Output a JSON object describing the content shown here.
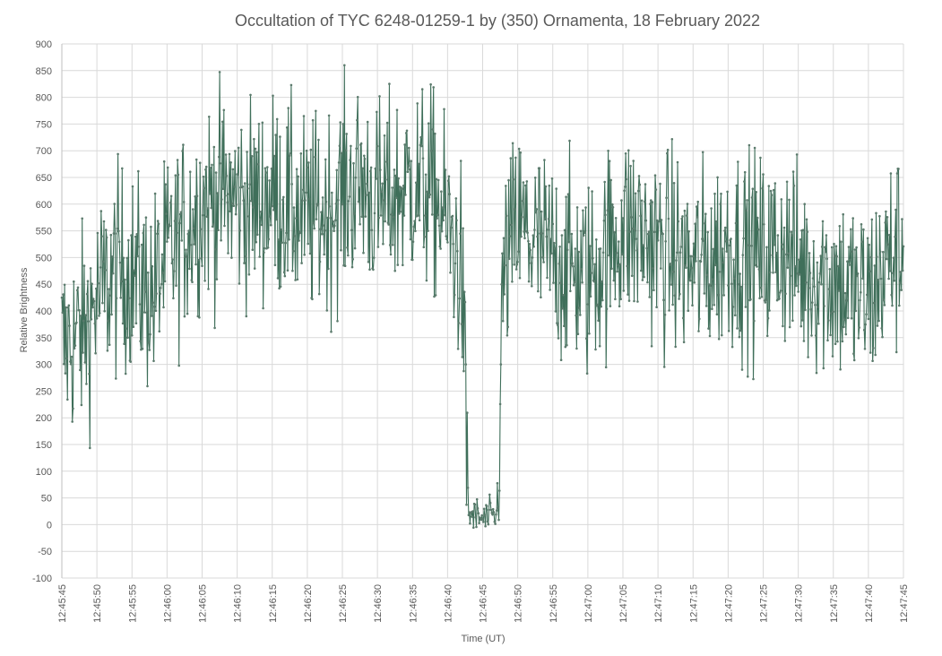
{
  "chart_data": {
    "type": "line",
    "title": "Occultation of TYC 6248-01259-1 by (350) Ornamenta, 18 February 2022",
    "xlabel": "Time (UT)",
    "ylabel": "Relative Brightness",
    "ylim": [
      -100,
      900
    ],
    "y_ticks": [
      "900",
      "850",
      "800",
      "750",
      "700",
      "650",
      "600",
      "550",
      "500",
      "450",
      "400",
      "350",
      "300",
      "250",
      "200",
      "150",
      "100",
      "50",
      "0",
      "-50",
      "-100"
    ],
    "x_range_seconds": [
      "12:45:45",
      "12:47:45"
    ],
    "x_ticks": [
      "12:45:45",
      "12:45:50",
      "12:45:55",
      "12:46:00",
      "12:46:05",
      "12:46:10",
      "12:46:15",
      "12:46:20",
      "12:46:25",
      "12:46:30",
      "12:46:35",
      "12:46:40",
      "12:46:45",
      "12:46:50",
      "12:46:55",
      "12:47:00",
      "12:47:05",
      "12:47:10",
      "12:47:15",
      "12:47:20",
      "12:47:25",
      "12:47:30",
      "12:47:35",
      "12:47:40",
      "12:47:45"
    ],
    "grid": true,
    "legend": "none",
    "series_color": "#3f6f5a",
    "series": [
      {
        "x": [
          "12:45:45",
          "12:45:48",
          "12:45:50",
          "12:45:53",
          "12:45:55",
          "12:45:58",
          "12:46:00",
          "12:46:03",
          "12:46:05",
          "12:46:08",
          "12:46:10",
          "12:46:13",
          "12:46:15",
          "12:46:18",
          "12:46:20",
          "12:46:23",
          "12:46:25",
          "12:46:28",
          "12:46:30",
          "12:46:33",
          "12:46:35",
          "12:46:38",
          "12:46:40",
          "12:46:42",
          "12:46:43",
          "12:46:45",
          "12:46:47",
          "12:46:48",
          "12:46:50",
          "12:46:53",
          "12:46:55",
          "12:46:58",
          "12:47:00",
          "12:47:03",
          "12:47:05",
          "12:47:08",
          "12:47:10",
          "12:47:13",
          "12:47:15",
          "12:47:18",
          "12:47:20",
          "12:47:23",
          "12:47:25",
          "12:47:28",
          "12:47:30",
          "12:47:33",
          "12:47:35",
          "12:47:38",
          "12:47:40",
          "12:47:43",
          "12:47:45"
        ],
        "values": [
          330,
          360,
          420,
          480,
          470,
          430,
          500,
          560,
          600,
          620,
          610,
          600,
          620,
          590,
          570,
          590,
          620,
          640,
          600,
          620,
          640,
          620,
          560,
          480,
          20,
          10,
          15,
          470,
          560,
          520,
          500,
          480,
          460,
          520,
          560,
          540,
          520,
          500,
          480,
          500,
          520,
          510,
          500,
          520,
          480,
          470,
          460,
          430,
          420,
          500,
          520
        ]
      }
    ]
  }
}
